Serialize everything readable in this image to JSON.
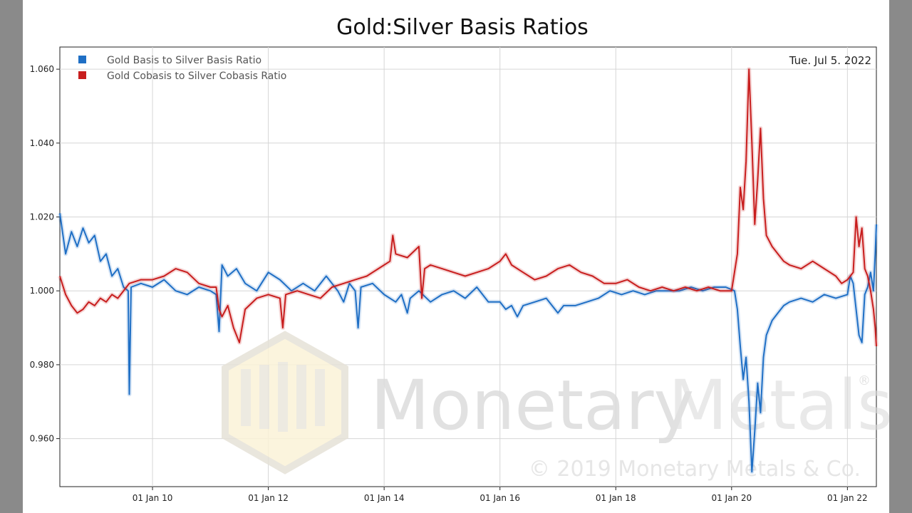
{
  "chart_data": {
    "type": "line",
    "title": "Gold:Silver Basis Ratios",
    "date_label": "Tue. Jul 5. 2022",
    "xlabel": "",
    "ylabel": "",
    "x_range": [
      2008.4,
      2022.5
    ],
    "ylim": [
      0.947,
      1.066
    ],
    "y_ticks": [
      0.96,
      0.98,
      1.0,
      1.02,
      1.04,
      1.06
    ],
    "y_tick_labels": [
      "0.960",
      "0.980",
      "1.000",
      "1.020",
      "1.040",
      "1.060"
    ],
    "x_ticks": [
      2010,
      2012,
      2014,
      2016,
      2018,
      2020,
      2022
    ],
    "x_tick_labels": [
      "01 Jan 10",
      "01 Jan 12",
      "01 Jan 14",
      "01 Jan 16",
      "01 Jan 18",
      "01 Jan 20",
      "01 Jan 22"
    ],
    "grid": true,
    "legend_position": "top-left",
    "watermark": {
      "brand_a": "Monetary",
      "brand_b": "Metals",
      "registered": "®",
      "copyright": "© 2019 Monetary Metals & Co."
    },
    "series": [
      {
        "name": "Gold Basis to Silver Basis Ratio",
        "color": "#1f6fc5",
        "points": [
          [
            2008.4,
            1.021
          ],
          [
            2008.5,
            1.01
          ],
          [
            2008.6,
            1.016
          ],
          [
            2008.7,
            1.012
          ],
          [
            2008.8,
            1.017
          ],
          [
            2008.9,
            1.013
          ],
          [
            2009.0,
            1.015
          ],
          [
            2009.1,
            1.008
          ],
          [
            2009.2,
            1.01
          ],
          [
            2009.3,
            1.004
          ],
          [
            2009.4,
            1.006
          ],
          [
            2009.5,
            1.001
          ],
          [
            2009.58,
            1.0
          ],
          [
            2009.6,
            0.972
          ],
          [
            2009.63,
            1.001
          ],
          [
            2009.8,
            1.002
          ],
          [
            2010.0,
            1.001
          ],
          [
            2010.2,
            1.003
          ],
          [
            2010.4,
            1.0
          ],
          [
            2010.6,
            0.999
          ],
          [
            2010.8,
            1.001
          ],
          [
            2011.0,
            1.0
          ],
          [
            2011.1,
            0.999
          ],
          [
            2011.15,
            0.989
          ],
          [
            2011.2,
            1.007
          ],
          [
            2011.3,
            1.004
          ],
          [
            2011.45,
            1.006
          ],
          [
            2011.6,
            1.002
          ],
          [
            2011.8,
            1.0
          ],
          [
            2012.0,
            1.005
          ],
          [
            2012.2,
            1.003
          ],
          [
            2012.4,
            1.0
          ],
          [
            2012.6,
            1.002
          ],
          [
            2012.8,
            1.0
          ],
          [
            2013.0,
            1.004
          ],
          [
            2013.2,
            1.0
          ],
          [
            2013.3,
            0.997
          ],
          [
            2013.4,
            1.002
          ],
          [
            2013.5,
            1.0
          ],
          [
            2013.55,
            0.99
          ],
          [
            2013.6,
            1.001
          ],
          [
            2013.8,
            1.002
          ],
          [
            2014.0,
            0.999
          ],
          [
            2014.2,
            0.997
          ],
          [
            2014.3,
            0.999
          ],
          [
            2014.4,
            0.994
          ],
          [
            2014.45,
            0.998
          ],
          [
            2014.6,
            1.0
          ],
          [
            2014.8,
            0.997
          ],
          [
            2015.0,
            0.999
          ],
          [
            2015.2,
            1.0
          ],
          [
            2015.4,
            0.998
          ],
          [
            2015.6,
            1.001
          ],
          [
            2015.8,
            0.997
          ],
          [
            2016.0,
            0.997
          ],
          [
            2016.1,
            0.995
          ],
          [
            2016.2,
            0.996
          ],
          [
            2016.3,
            0.993
          ],
          [
            2016.4,
            0.996
          ],
          [
            2016.6,
            0.997
          ],
          [
            2016.8,
            0.998
          ],
          [
            2017.0,
            0.994
          ],
          [
            2017.1,
            0.996
          ],
          [
            2017.3,
            0.996
          ],
          [
            2017.5,
            0.997
          ],
          [
            2017.7,
            0.998
          ],
          [
            2017.9,
            1.0
          ],
          [
            2018.1,
            0.999
          ],
          [
            2018.3,
            1.0
          ],
          [
            2018.5,
            0.999
          ],
          [
            2018.7,
            1.0
          ],
          [
            2018.9,
            1.0
          ],
          [
            2019.1,
            1.0
          ],
          [
            2019.3,
            1.001
          ],
          [
            2019.5,
            1.0
          ],
          [
            2019.7,
            1.001
          ],
          [
            2019.9,
            1.001
          ],
          [
            2020.05,
            1.0
          ],
          [
            2020.1,
            0.995
          ],
          [
            2020.15,
            0.985
          ],
          [
            2020.2,
            0.976
          ],
          [
            2020.25,
            0.982
          ],
          [
            2020.3,
            0.97
          ],
          [
            2020.35,
            0.951
          ],
          [
            2020.4,
            0.962
          ],
          [
            2020.45,
            0.975
          ],
          [
            2020.5,
            0.967
          ],
          [
            2020.55,
            0.982
          ],
          [
            2020.6,
            0.988
          ],
          [
            2020.65,
            0.99
          ],
          [
            2020.7,
            0.992
          ],
          [
            2020.8,
            0.994
          ],
          [
            2020.9,
            0.996
          ],
          [
            2021.0,
            0.997
          ],
          [
            2021.2,
            0.998
          ],
          [
            2021.4,
            0.997
          ],
          [
            2021.6,
            0.999
          ],
          [
            2021.8,
            0.998
          ],
          [
            2022.0,
            0.999
          ],
          [
            2022.05,
            1.004
          ],
          [
            2022.1,
            1.002
          ],
          [
            2022.2,
            0.988
          ],
          [
            2022.25,
            0.986
          ],
          [
            2022.3,
            0.999
          ],
          [
            2022.35,
            1.001
          ],
          [
            2022.4,
            1.005
          ],
          [
            2022.45,
            1.0
          ],
          [
            2022.48,
            1.01
          ],
          [
            2022.5,
            1.018
          ]
        ]
      },
      {
        "name": "Gold Cobasis to Silver Cobasis Ratio",
        "color": "#c81e1e",
        "points": [
          [
            2008.4,
            1.004
          ],
          [
            2008.5,
            0.999
          ],
          [
            2008.6,
            0.996
          ],
          [
            2008.7,
            0.994
          ],
          [
            2008.8,
            0.995
          ],
          [
            2008.9,
            0.997
          ],
          [
            2009.0,
            0.996
          ],
          [
            2009.1,
            0.998
          ],
          [
            2009.2,
            0.997
          ],
          [
            2009.3,
            0.999
          ],
          [
            2009.4,
            0.998
          ],
          [
            2009.5,
            1.0
          ],
          [
            2009.6,
            1.002
          ],
          [
            2009.8,
            1.003
          ],
          [
            2010.0,
            1.003
          ],
          [
            2010.2,
            1.004
          ],
          [
            2010.4,
            1.006
          ],
          [
            2010.6,
            1.005
          ],
          [
            2010.8,
            1.002
          ],
          [
            2011.0,
            1.001
          ],
          [
            2011.1,
            1.001
          ],
          [
            2011.15,
            0.995
          ],
          [
            2011.2,
            0.993
          ],
          [
            2011.3,
            0.996
          ],
          [
            2011.4,
            0.99
          ],
          [
            2011.5,
            0.986
          ],
          [
            2011.6,
            0.995
          ],
          [
            2011.8,
            0.998
          ],
          [
            2012.0,
            0.999
          ],
          [
            2012.2,
            0.998
          ],
          [
            2012.25,
            0.99
          ],
          [
            2012.3,
            0.999
          ],
          [
            2012.5,
            1.0
          ],
          [
            2012.7,
            0.999
          ],
          [
            2012.9,
            0.998
          ],
          [
            2013.1,
            1.001
          ],
          [
            2013.3,
            1.002
          ],
          [
            2013.5,
            1.003
          ],
          [
            2013.7,
            1.004
          ],
          [
            2013.9,
            1.006
          ],
          [
            2014.1,
            1.008
          ],
          [
            2014.15,
            1.015
          ],
          [
            2014.2,
            1.01
          ],
          [
            2014.4,
            1.009
          ],
          [
            2014.6,
            1.012
          ],
          [
            2014.65,
            0.998
          ],
          [
            2014.7,
            1.006
          ],
          [
            2014.8,
            1.007
          ],
          [
            2015.0,
            1.006
          ],
          [
            2015.2,
            1.005
          ],
          [
            2015.4,
            1.004
          ],
          [
            2015.6,
            1.005
          ],
          [
            2015.8,
            1.006
          ],
          [
            2016.0,
            1.008
          ],
          [
            2016.1,
            1.01
          ],
          [
            2016.2,
            1.007
          ],
          [
            2016.4,
            1.005
          ],
          [
            2016.6,
            1.003
          ],
          [
            2016.8,
            1.004
          ],
          [
            2017.0,
            1.006
          ],
          [
            2017.2,
            1.007
          ],
          [
            2017.4,
            1.005
          ],
          [
            2017.6,
            1.004
          ],
          [
            2017.8,
            1.002
          ],
          [
            2018.0,
            1.002
          ],
          [
            2018.2,
            1.003
          ],
          [
            2018.4,
            1.001
          ],
          [
            2018.6,
            1.0
          ],
          [
            2018.8,
            1.001
          ],
          [
            2019.0,
            1.0
          ],
          [
            2019.2,
            1.001
          ],
          [
            2019.4,
            1.0
          ],
          [
            2019.6,
            1.001
          ],
          [
            2019.8,
            1.0
          ],
          [
            2020.0,
            1.0
          ],
          [
            2020.1,
            1.01
          ],
          [
            2020.15,
            1.028
          ],
          [
            2020.2,
            1.022
          ],
          [
            2020.25,
            1.035
          ],
          [
            2020.3,
            1.06
          ],
          [
            2020.35,
            1.04
          ],
          [
            2020.4,
            1.018
          ],
          [
            2020.45,
            1.03
          ],
          [
            2020.5,
            1.044
          ],
          [
            2020.55,
            1.025
          ],
          [
            2020.6,
            1.015
          ],
          [
            2020.7,
            1.012
          ],
          [
            2020.8,
            1.01
          ],
          [
            2020.9,
            1.008
          ],
          [
            2021.0,
            1.007
          ],
          [
            2021.2,
            1.006
          ],
          [
            2021.4,
            1.008
          ],
          [
            2021.6,
            1.006
          ],
          [
            2021.8,
            1.004
          ],
          [
            2021.9,
            1.002
          ],
          [
            2022.0,
            1.003
          ],
          [
            2022.1,
            1.005
          ],
          [
            2022.15,
            1.02
          ],
          [
            2022.2,
            1.012
          ],
          [
            2022.25,
            1.017
          ],
          [
            2022.3,
            1.006
          ],
          [
            2022.35,
            1.004
          ],
          [
            2022.4,
            1.0
          ],
          [
            2022.45,
            0.995
          ],
          [
            2022.48,
            0.99
          ],
          [
            2022.5,
            0.985
          ]
        ]
      }
    ]
  }
}
